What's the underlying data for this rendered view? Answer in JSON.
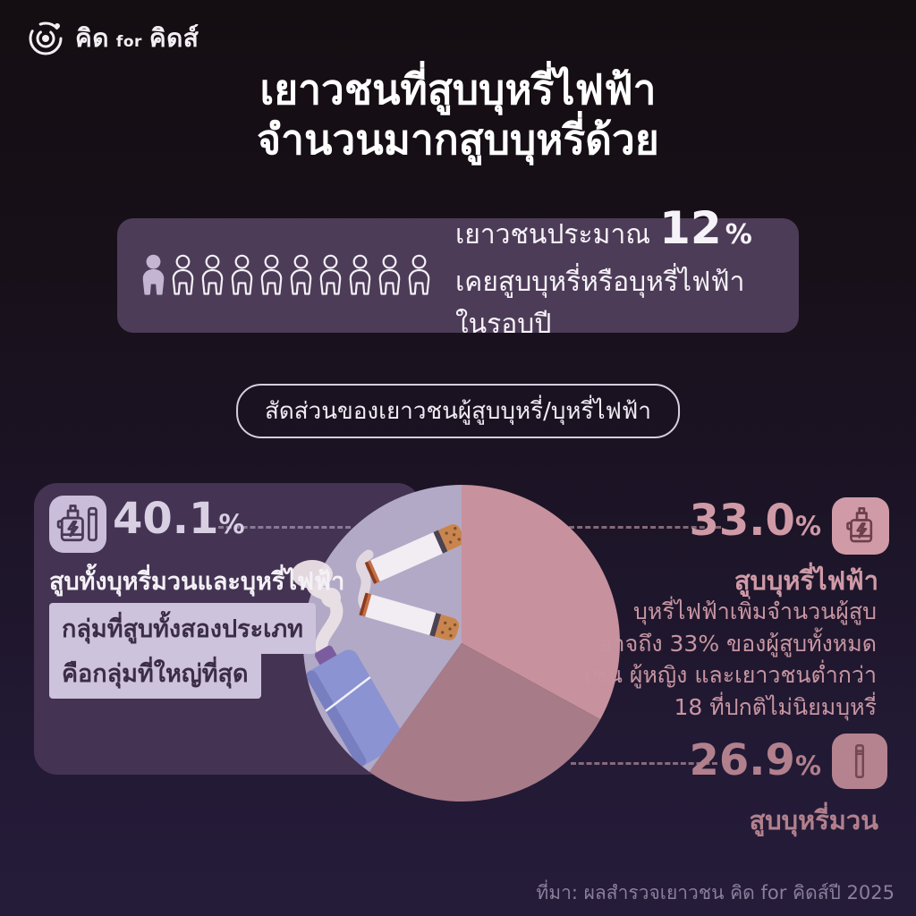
{
  "logo": {
    "brand_left": "คิด",
    "brand_mid": "for",
    "brand_right": "คิดส์",
    "icon": "kid-for-kids-eye-icon"
  },
  "title": {
    "line1": "เยาวชนที่สูบบุหรี่ไฟฟ้า",
    "line2": "จำนวนมากสูบบุหรี่ด้วย"
  },
  "stat_banner": {
    "prefix": "เยาวชนประมาณ",
    "value": "12",
    "unit": "%",
    "line2": "เคยสูบบุหรี่หรือบุหรี่ไฟฟ้าในรอบปี",
    "icons_total": 10,
    "icons_filled": 1,
    "icon": "person-icon",
    "background": "#4d3c58",
    "filled_person_color": "#c4b5d3"
  },
  "section_pill": {
    "label": "สัดส่วนของเยาวชนผู้สูบบุหรี่/บุหรี่ไฟฟ้า"
  },
  "chart_data": {
    "type": "pie",
    "title": "สัดส่วนของเยาวชนผู้สูบบุหรี่/บุหรี่ไฟฟ้า",
    "segments": [
      {
        "label": "สูบทั้งบุหรี่มวนและบุหรี่ไฟฟ้า",
        "value": 40.1,
        "color": "#b1a9c6"
      },
      {
        "label": "สูบบุหรี่ไฟฟ้า",
        "value": 33.0,
        "color": "#c7919d"
      },
      {
        "label": "สูบบุหรี่มวน",
        "value": 26.9,
        "color": "#a87b88"
      }
    ],
    "start_angle_deg": 0,
    "direction": "clockwise-from-top",
    "legend_position": "callouts",
    "illustrations": [
      "cigarette",
      "cigarette",
      "vape-device",
      "smoke"
    ]
  },
  "callout_left": {
    "value": "40.1",
    "unit": "%",
    "subtitle": "สูบทั้งบุหรี่มวนและบุหรี่ไฟฟ้า",
    "chip1": "กลุ่มที่สูบทั้งสองประเภท",
    "chip2": "คือกลุ่มที่ใหญ่ที่สุด",
    "icon": "vape-and-cigarette-icon",
    "accent": "#d8cfe3"
  },
  "callout_right_top": {
    "value": "33.0",
    "unit": "%",
    "title": "สูบบุหรี่ไฟฟ้า",
    "desc_line1": "บุหรี่ไฟฟ้าเพิ่มจำนวนผู้สูบ",
    "desc_line2": "อาจถึง 33% ของผู้สูบทั้งหมด",
    "desc_line3": "เช่น ผู้หญิง และเยาวชนต่ำกว่า",
    "desc_line4": "18 ที่ปกติไม่นิยมบุหรี่",
    "icon": "vape-icon",
    "accent": "#cf9aa6"
  },
  "callout_right_bottom": {
    "value": "26.9",
    "unit": "%",
    "title": "สูบบุหรี่มวน",
    "icon": "cigarette-icon",
    "accent": "#b2808d"
  },
  "footer": {
    "source": "ที่มา: ผลสำรวจเยาวชน คิด for คิดส์ปี 2025"
  }
}
